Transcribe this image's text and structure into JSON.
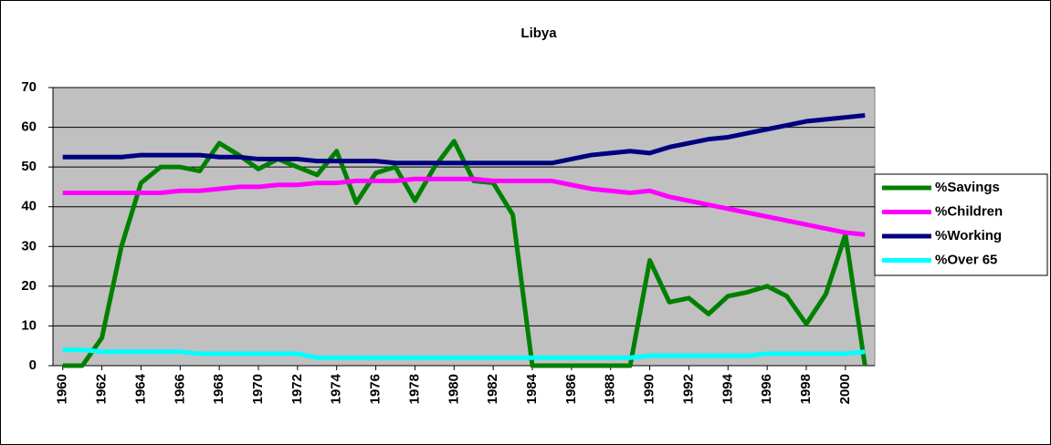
{
  "chart_data": {
    "type": "line",
    "title": "Libya",
    "x": [
      1960,
      1961,
      1962,
      1963,
      1964,
      1965,
      1966,
      1967,
      1968,
      1969,
      1970,
      1971,
      1972,
      1973,
      1974,
      1975,
      1976,
      1977,
      1978,
      1979,
      1980,
      1981,
      1982,
      1983,
      1984,
      1985,
      1986,
      1987,
      1988,
      1989,
      1990,
      1991,
      1992,
      1993,
      1994,
      1995,
      1996,
      1997,
      1998,
      1999,
      2000,
      2001
    ],
    "series": [
      {
        "name": "%Savings",
        "color": "#008000",
        "values": [
          0,
          0,
          7,
          30,
          46,
          50,
          50,
          49,
          56,
          53,
          49.5,
          52,
          50,
          48,
          54,
          41,
          48.5,
          50,
          41.5,
          50,
          56.5,
          46.5,
          46,
          38,
          0,
          0,
          0,
          0,
          0,
          0,
          26.5,
          16,
          17,
          13,
          17.5,
          18.5,
          20,
          17.5,
          10.5,
          18,
          33,
          0
        ]
      },
      {
        "name": "%Children",
        "color": "#ff00ff",
        "values": [
          43.5,
          43.5,
          43.5,
          43.5,
          43.5,
          43.5,
          44,
          44,
          44.5,
          45,
          45,
          45.5,
          45.5,
          46,
          46,
          46.5,
          46.5,
          46.5,
          47,
          47,
          47,
          47,
          46.5,
          46.5,
          46.5,
          46.5,
          45.5,
          44.5,
          44,
          43.5,
          44,
          42.5,
          41.5,
          40.5,
          39.5,
          38.5,
          37.5,
          36.5,
          35.5,
          34.5,
          33.5,
          33
        ]
      },
      {
        "name": "%Working",
        "color": "#000080",
        "values": [
          52.5,
          52.5,
          52.5,
          52.5,
          53,
          53,
          53,
          53,
          52.5,
          52.5,
          52,
          52,
          52,
          51.5,
          51.5,
          51.5,
          51.5,
          51,
          51,
          51,
          51,
          51,
          51,
          51,
          51,
          51,
          52,
          53,
          53.5,
          54,
          53.5,
          55,
          56,
          57,
          57.5,
          58.5,
          59.5,
          60.5,
          61.5,
          62,
          62.5,
          63
        ]
      },
      {
        "name": "%Over 65",
        "color": "#00ffff",
        "values": [
          4,
          4,
          3.5,
          3.5,
          3.5,
          3.5,
          3.5,
          3,
          3,
          3,
          3,
          3,
          3,
          2,
          2,
          2,
          2,
          2,
          2,
          2,
          2,
          2,
          2,
          2,
          2,
          2,
          2,
          2,
          2,
          2,
          2.5,
          2.5,
          2.5,
          2.5,
          2.5,
          2.5,
          3,
          3,
          3,
          3,
          3,
          3.5
        ]
      }
    ],
    "xlim": [
      1959.5,
      2001.5
    ],
    "xticks": [
      1960,
      1962,
      1964,
      1966,
      1968,
      1970,
      1972,
      1974,
      1976,
      1978,
      1980,
      1982,
      1984,
      1986,
      1988,
      1990,
      1992,
      1994,
      1996,
      1998,
      2000
    ],
    "ylim": [
      0,
      70
    ],
    "yticks": [
      0,
      10,
      20,
      30,
      40,
      50,
      60,
      70
    ],
    "grid": true,
    "legend": "right"
  }
}
